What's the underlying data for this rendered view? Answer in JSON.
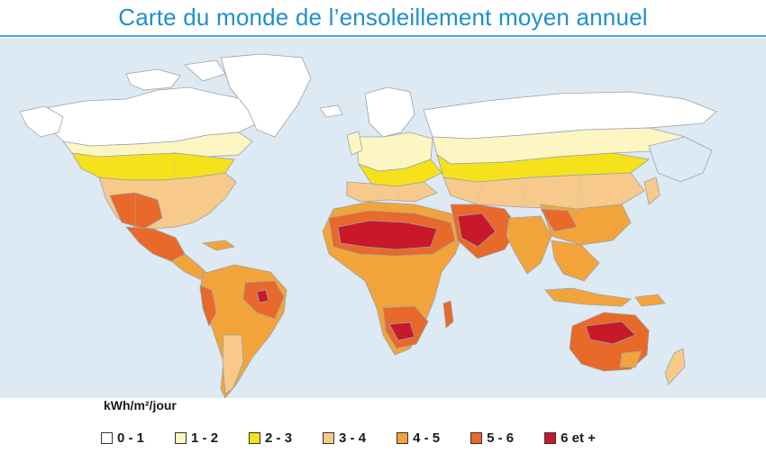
{
  "title": "Carte du monde de l’ensoleillement moyen annuel",
  "legend": {
    "unit": "kWh/m²/jour",
    "items": [
      {
        "label": "0 - 1",
        "color": "#ffffff"
      },
      {
        "label": "1 - 2",
        "color": "#fdf6c3"
      },
      {
        "label": "2 - 3",
        "color": "#f5e21a"
      },
      {
        "label": "3 - 4",
        "color": "#f7c98a"
      },
      {
        "label": "4 - 5",
        "color": "#f2a43a"
      },
      {
        "label": "5 - 6",
        "color": "#e8692a"
      },
      {
        "label": "6 et +",
        "color": "#c8192a"
      }
    ]
  },
  "colors": {
    "ocean": "#dde9f3",
    "title": "#1e8fcf",
    "borders": "#9aa3aa"
  }
}
